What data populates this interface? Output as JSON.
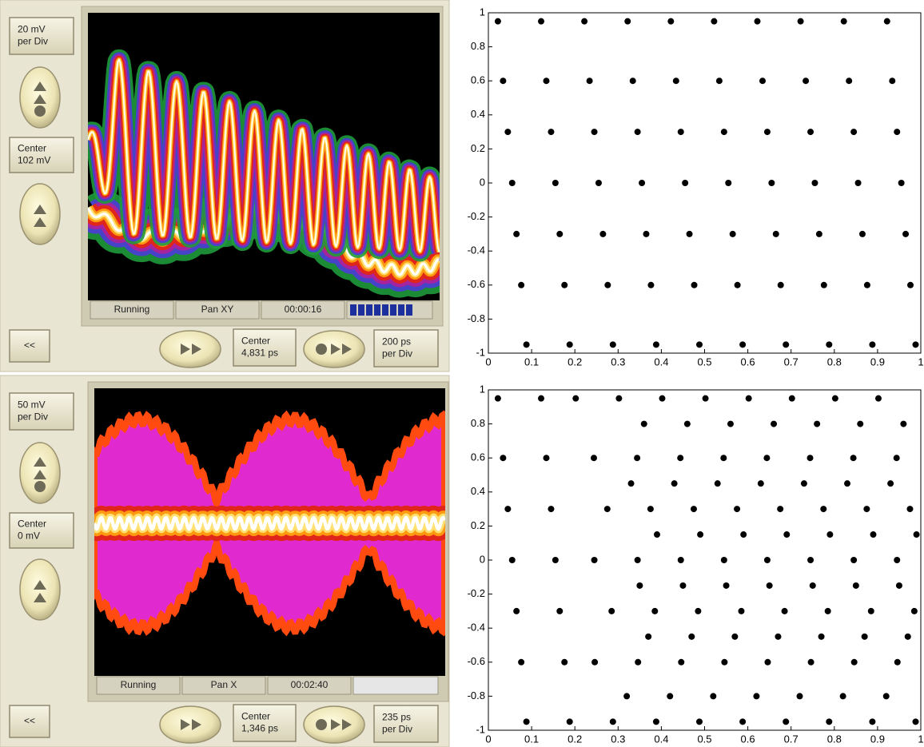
{
  "scope_panels": [
    {
      "volts_per_div": [
        "20 mV",
        "per Div"
      ],
      "v_center": [
        "Center",
        "102 mV"
      ],
      "status": [
        "Running",
        "Pan XY",
        "00:00:16"
      ],
      "back": "<<",
      "t_center": [
        "Center",
        "4,831 ps"
      ],
      "time_per_div": [
        "200 ps",
        "per Div"
      ]
    },
    {
      "volts_per_div": [
        "50 mV",
        "per Div"
      ],
      "v_center": [
        "Center",
        "0 mV"
      ],
      "status": [
        "Running",
        "Pan X",
        "00:02:40"
      ],
      "back": "<<",
      "t_center": [
        "Center",
        "1,346 ps"
      ],
      "time_per_div": [
        "235 ps",
        "per Div"
      ]
    }
  ],
  "chart_data": [
    {
      "type": "scatter",
      "color": "#000000",
      "x": [
        0.022,
        0.034,
        0.045,
        0.055,
        0.065,
        0.076,
        0.088,
        0.122,
        0.134,
        0.145,
        0.155,
        0.165,
        0.176,
        0.188,
        0.222,
        0.234,
        0.245,
        0.255,
        0.265,
        0.276,
        0.288,
        0.322,
        0.334,
        0.345,
        0.355,
        0.365,
        0.376,
        0.388,
        0.422,
        0.434,
        0.445,
        0.455,
        0.465,
        0.476,
        0.488,
        0.522,
        0.534,
        0.545,
        0.555,
        0.565,
        0.576,
        0.588,
        0.622,
        0.634,
        0.645,
        0.655,
        0.665,
        0.676,
        0.688,
        0.722,
        0.734,
        0.745,
        0.755,
        0.765,
        0.776,
        0.788,
        0.822,
        0.834,
        0.845,
        0.855,
        0.865,
        0.876,
        0.888,
        0.922,
        0.934,
        0.945,
        0.955,
        0.965,
        0.976,
        0.988
      ],
      "y": [
        0.95,
        0.6,
        0.3,
        0,
        -0.3,
        -0.6,
        -0.95,
        0.95,
        0.6,
        0.3,
        0,
        -0.3,
        -0.6,
        -0.95,
        0.95,
        0.6,
        0.3,
        0,
        -0.3,
        -0.6,
        -0.95,
        0.95,
        0.6,
        0.3,
        0,
        -0.3,
        -0.6,
        -0.95,
        0.95,
        0.6,
        0.3,
        0,
        -0.3,
        -0.6,
        -0.95,
        0.95,
        0.6,
        0.3,
        0,
        -0.3,
        -0.6,
        -0.95,
        0.95,
        0.6,
        0.3,
        0,
        -0.3,
        -0.6,
        -0.95,
        0.95,
        0.6,
        0.3,
        0,
        -0.3,
        -0.6,
        -0.95,
        0.95,
        0.6,
        0.3,
        0,
        -0.3,
        -0.6,
        -0.95,
        0.95,
        0.6,
        0.3,
        0,
        -0.3,
        -0.6,
        -0.95
      ],
      "xlim": [
        0,
        1
      ],
      "ylim": [
        -1,
        1
      ],
      "xticks": [
        0,
        0.1,
        0.2,
        0.3,
        0.4,
        0.5,
        0.6,
        0.7,
        0.8,
        0.9,
        1
      ],
      "yticks": [
        -1,
        -0.8,
        -0.6,
        -0.4,
        -0.2,
        0,
        0.2,
        0.4,
        0.6,
        0.8,
        1
      ]
    },
    {
      "type": "scatter",
      "color": "#000000",
      "x": [
        0.022,
        0.034,
        0.045,
        0.055,
        0.065,
        0.076,
        0.088,
        0.122,
        0.134,
        0.145,
        0.155,
        0.165,
        0.176,
        0.188,
        0.202,
        0.244,
        0.275,
        0.245,
        0.285,
        0.246,
        0.288,
        0.302,
        0.344,
        0.375,
        0.345,
        0.385,
        0.346,
        0.388,
        0.402,
        0.444,
        0.475,
        0.445,
        0.485,
        0.446,
        0.488,
        0.502,
        0.544,
        0.575,
        0.545,
        0.585,
        0.546,
        0.588,
        0.602,
        0.644,
        0.675,
        0.645,
        0.685,
        0.646,
        0.688,
        0.702,
        0.744,
        0.775,
        0.745,
        0.785,
        0.746,
        0.788,
        0.802,
        0.844,
        0.875,
        0.845,
        0.885,
        0.846,
        0.888,
        0.902,
        0.944,
        0.975,
        0.945,
        0.985,
        0.946,
        0.988,
        0.36,
        0.33,
        0.39,
        0.35,
        0.37,
        0.32,
        0.46,
        0.43,
        0.49,
        0.45,
        0.47,
        0.42,
        0.56,
        0.53,
        0.59,
        0.55,
        0.57,
        0.52,
        0.66,
        0.63,
        0.69,
        0.65,
        0.67,
        0.62,
        0.76,
        0.73,
        0.79,
        0.75,
        0.77,
        0.72,
        0.86,
        0.83,
        0.89,
        0.85,
        0.87,
        0.82,
        0.96,
        0.93,
        0.99,
        0.95,
        0.97,
        0.92
      ],
      "y": [
        0.95,
        0.6,
        0.3,
        0,
        -0.3,
        -0.6,
        -0.95,
        0.95,
        0.6,
        0.3,
        0,
        -0.3,
        -0.6,
        -0.95,
        0.95,
        0.6,
        0.3,
        0,
        -0.3,
        -0.6,
        -0.95,
        0.95,
        0.6,
        0.3,
        0,
        -0.3,
        -0.6,
        -0.95,
        0.95,
        0.6,
        0.3,
        0,
        -0.3,
        -0.6,
        -0.95,
        0.95,
        0.6,
        0.3,
        0,
        -0.3,
        -0.6,
        -0.95,
        0.95,
        0.6,
        0.3,
        0,
        -0.3,
        -0.6,
        -0.95,
        0.95,
        0.6,
        0.3,
        0,
        -0.3,
        -0.6,
        -0.95,
        0.95,
        0.6,
        0.3,
        0,
        -0.3,
        -0.6,
        -0.95,
        0.95,
        0.6,
        0.3,
        0,
        -0.3,
        -0.6,
        -0.95,
        0.8,
        0.45,
        0.15,
        -0.15,
        -0.45,
        -0.8,
        0.8,
        0.45,
        0.15,
        -0.15,
        -0.45,
        -0.8,
        0.8,
        0.45,
        0.15,
        -0.15,
        -0.45,
        -0.8,
        0.8,
        0.45,
        0.15,
        -0.15,
        -0.45,
        -0.8,
        0.8,
        0.45,
        0.15,
        -0.15,
        -0.45,
        -0.8,
        0.8,
        0.45,
        0.15,
        -0.15,
        -0.45,
        -0.8,
        0.8,
        0.45,
        0.15,
        -0.15,
        -0.45,
        -0.8
      ],
      "xlim": [
        0,
        1
      ],
      "ylim": [
        -1,
        1
      ],
      "xticks": [
        0,
        0.1,
        0.2,
        0.3,
        0.4,
        0.5,
        0.6,
        0.7,
        0.8,
        0.9,
        1
      ],
      "yticks": [
        -1,
        -0.8,
        -0.6,
        -0.4,
        -0.2,
        0,
        0.2,
        0.4,
        0.6,
        0.8,
        1
      ]
    }
  ]
}
